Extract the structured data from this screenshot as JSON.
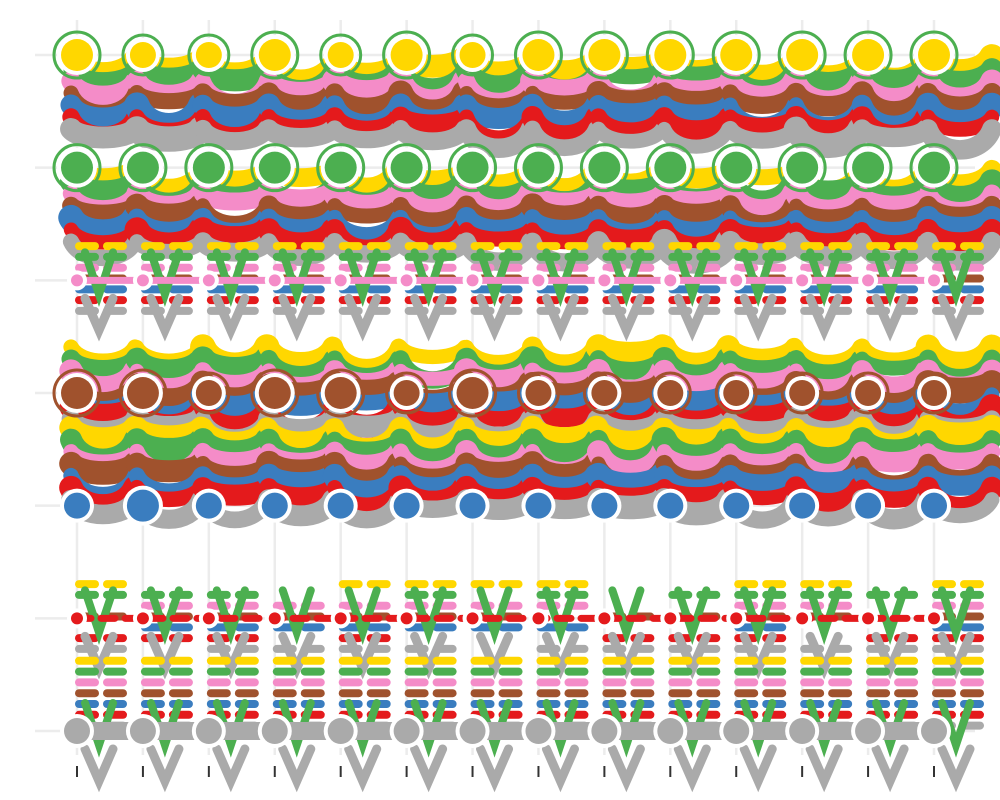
{
  "chart_data": {
    "type": "scatter",
    "title": "",
    "xlabel": "",
    "ylabel": "",
    "x": [
      1,
      2,
      3,
      4,
      5,
      6,
      7,
      8,
      9,
      10,
      11,
      12,
      13,
      14
    ],
    "rows": [
      {
        "name": "",
        "node_color": "#ffd700",
        "node_size": [
          3,
          2,
          2,
          3,
          2,
          3,
          2,
          3,
          3,
          3,
          3,
          3,
          3,
          3
        ]
      },
      {
        "name": "",
        "node_color": "#4caf50",
        "node_size": [
          3,
          3,
          3,
          3,
          3,
          3,
          3,
          3,
          3,
          3,
          3,
          3,
          3,
          3
        ]
      },
      {
        "name": "",
        "node_color": "#f48cc8",
        "node_size": [
          1,
          1,
          1,
          1,
          1,
          1,
          1,
          1,
          1,
          1,
          1,
          1,
          1,
          1
        ]
      },
      {
        "name": "",
        "node_color": "#a0522d",
        "node_size": [
          3,
          3,
          2,
          3,
          3,
          2,
          3,
          2,
          2,
          2,
          2,
          2,
          2,
          2
        ]
      },
      {
        "name": "",
        "node_color": "#3a7dbf",
        "node_size": [
          2,
          3,
          2,
          2,
          2,
          2,
          2,
          2,
          2,
          2,
          2,
          2,
          2,
          2
        ]
      },
      {
        "name": "",
        "node_color": "#e41a1c",
        "node_size": [
          1,
          1,
          1,
          1,
          1,
          1,
          1,
          1,
          1,
          1,
          1,
          1,
          1,
          1
        ]
      },
      {
        "name": "",
        "node_color": "#aaaaaa",
        "node_size": [
          2,
          2,
          2,
          2,
          2,
          2,
          2,
          2,
          2,
          2,
          2,
          2,
          2,
          2
        ]
      }
    ],
    "band_colors": [
      "#ffd700",
      "#4caf50",
      "#f48cc8",
      "#a0522d",
      "#3a7dbf",
      "#e41a1c",
      "#aaaaaa"
    ],
    "grid": true,
    "legend": "none"
  }
}
